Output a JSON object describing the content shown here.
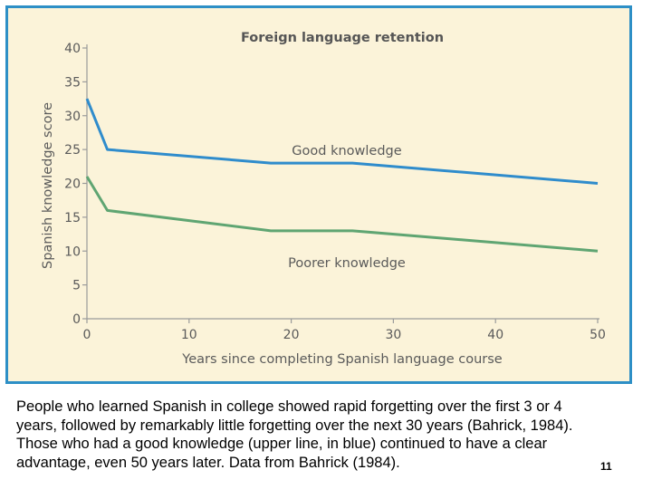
{
  "chart_data": {
    "type": "line",
    "title": "Foreign language retention",
    "xlabel": "Years since completing Spanish language course",
    "ylabel": "Spanish knowledge score",
    "xlim": [
      0,
      50
    ],
    "ylim": [
      0,
      40
    ],
    "x_ticks": [
      "0",
      "10",
      "20",
      "30",
      "40",
      "50"
    ],
    "y_ticks": [
      "0",
      "5",
      "10",
      "15",
      "20",
      "25",
      "30",
      "35",
      "40"
    ],
    "grid": false,
    "series": [
      {
        "name": "Good knowledge",
        "color": "#2f8ccc",
        "x": [
          0,
          2,
          18,
          26,
          50
        ],
        "y": [
          32.5,
          25,
          23,
          23,
          20
        ]
      },
      {
        "name": "Poorer knowledge",
        "color": "#5fa572",
        "x": [
          0,
          2,
          18,
          26,
          50
        ],
        "y": [
          21,
          16,
          13,
          13,
          10
        ]
      }
    ]
  },
  "caption": "People who learned Spanish in college showed rapid forgetting over the first 3 or 4 years, followed by remarkably little forgetting over the next 30 years (Bahrick, 1984). Those who had a good knowledge (upper line, in blue) continued to have a clear advantage, even 50 years later. Data from Bahrick (1984).",
  "page_number": "11",
  "colors": {
    "panel_background": "#fbf3d9",
    "panel_border": "#2d8fc6",
    "axis": "#9a9a9a",
    "text": "#5a5a5a"
  }
}
